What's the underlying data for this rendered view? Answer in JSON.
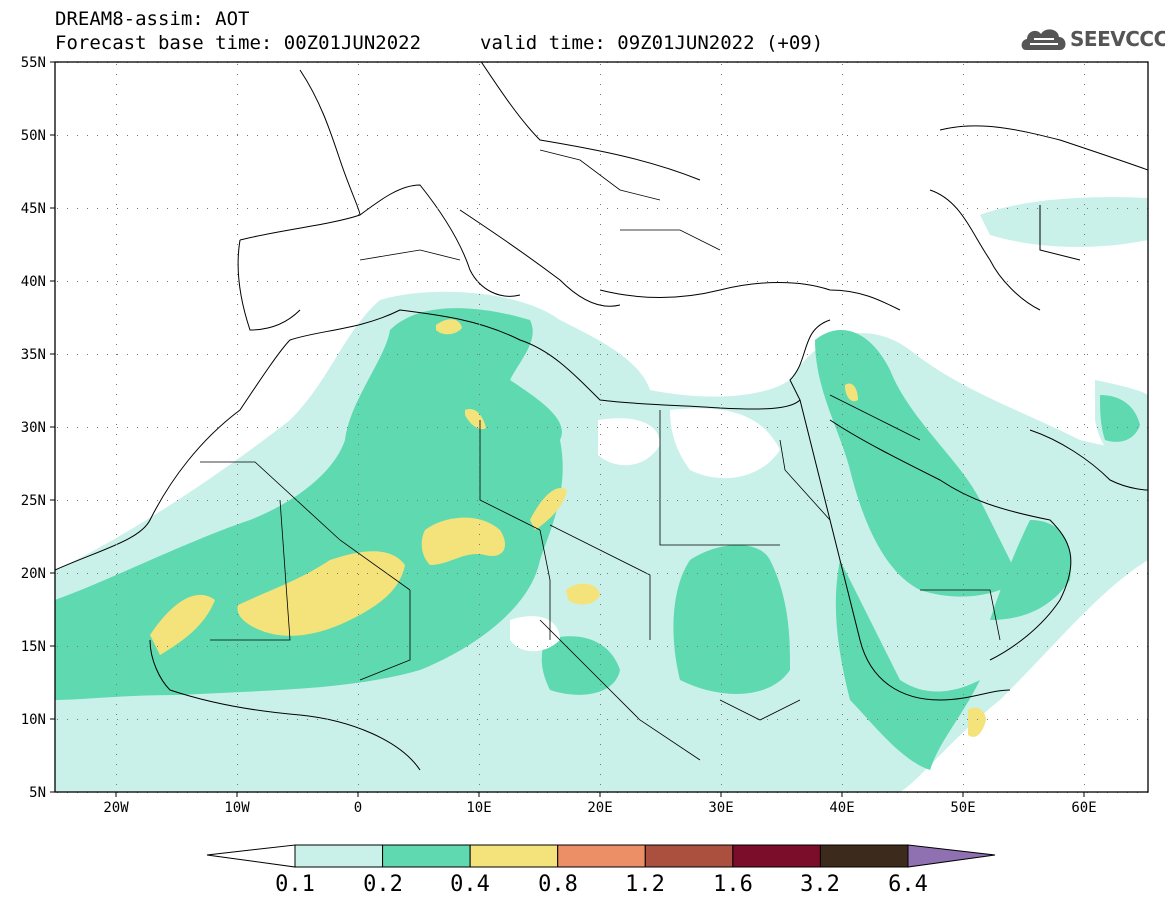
{
  "header": {
    "title_line1": "DREAM8-assim: AOT",
    "title_line2": "Forecast base time: 00Z01JUN2022",
    "valid_time": "valid time: 09Z01JUN2022 (+09)"
  },
  "logo": {
    "text": "SEEVCCC",
    "icon": "cloud-icon"
  },
  "map": {
    "lat_labels": [
      "55N",
      "50N",
      "45N",
      "40N",
      "35N",
      "30N",
      "25N",
      "20N",
      "15N",
      "10N",
      "5N"
    ],
    "lon_labels": [
      "20W",
      "10W",
      "0",
      "10E",
      "20E",
      "30E",
      "40E",
      "50E",
      "60E"
    ]
  },
  "colorbar": {
    "labels": [
      "0.1",
      "0.2",
      "0.4",
      "0.8",
      "1.2",
      "1.6",
      "3.2",
      "6.4"
    ],
    "colors": [
      "#ffffff",
      "#c9f1ea",
      "#5fd9af",
      "#f4e37a",
      "#ec8f66",
      "#ab4f3e",
      "#7b0c2a",
      "#3c2a1c",
      "#8f70b0"
    ]
  }
}
